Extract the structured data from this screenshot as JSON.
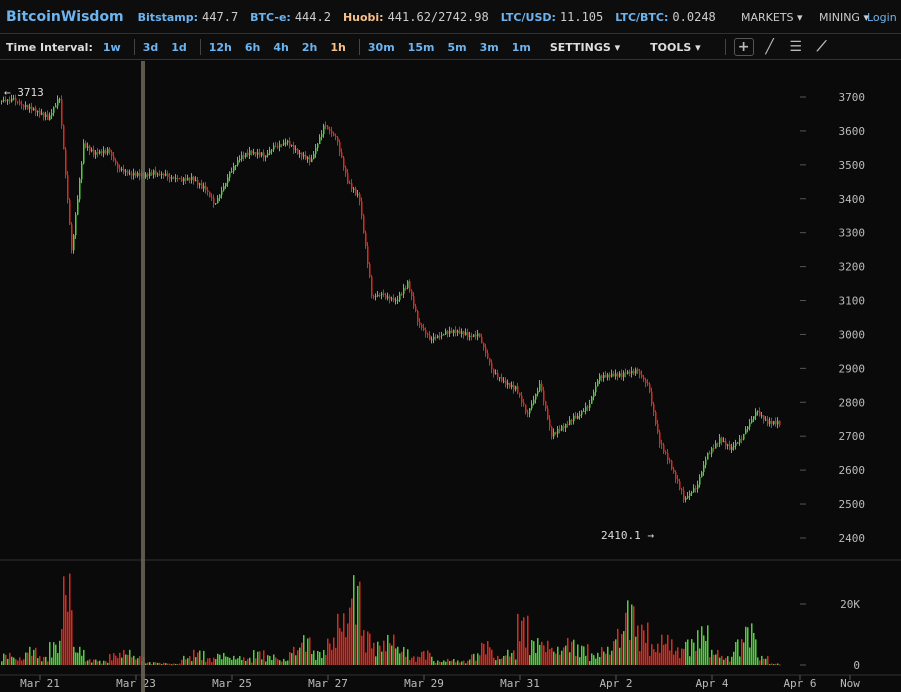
{
  "header": {
    "logo": "BitcoinWisdom",
    "tickers": [
      {
        "label": "Bitstamp:",
        "value": "447.7"
      },
      {
        "label": "BTC-e:",
        "value": "444.2"
      },
      {
        "label": "Huobi:",
        "value": "441.62/2742.98",
        "highlight": true
      },
      {
        "label": "LTC/USD:",
        "value": "11.105"
      },
      {
        "label": "LTC/BTC:",
        "value": "0.0248"
      }
    ],
    "markets": "MARKETS ▾",
    "mining": "MINING ▾",
    "login": "Login"
  },
  "toolbar": {
    "time_interval_label": "Time Interval:",
    "groups": [
      [
        "1w"
      ],
      [
        "3d",
        "1d"
      ],
      [
        "12h",
        "6h",
        "4h",
        "2h",
        "1h"
      ],
      [
        "30m",
        "15m",
        "5m",
        "3m",
        "1m"
      ]
    ],
    "active": "1h",
    "settings": "SETTINGS ▾",
    "tools": "TOOLS ▾",
    "tool_icons": [
      "crosshair-icon",
      "line-draw-icon",
      "fibonacci-icon",
      "fan-icon"
    ]
  },
  "colors": {
    "up": "#4fd13a",
    "down": "#e0281e",
    "accent": "#6cb4f0",
    "active": "#f5c08a"
  },
  "chart_data": {
    "type": "candlestick",
    "interval": "1h",
    "price_axis": {
      "ticks": [
        3700,
        3600,
        3500,
        3400,
        3300,
        3200,
        3100,
        3000,
        2900,
        2800,
        2700,
        2600,
        2500,
        2400
      ]
    },
    "volume_axis": {
      "ticks": [
        "20K",
        "0"
      ],
      "tick_values": [
        20000,
        0
      ]
    },
    "x_ticks": [
      "Mar 21",
      "Mar 23",
      "Mar 25",
      "Mar 27",
      "Mar 29",
      "Mar 31",
      "Apr 2",
      "Apr 4",
      "Apr 6",
      "Now"
    ],
    "high_marker": "← 3713",
    "low_marker": "2410.1 →",
    "closes_6h": [
      3690,
      3670,
      3660,
      3640,
      3700,
      3250,
      3560,
      3530,
      3540,
      3480,
      3470,
      3470,
      3480,
      3470,
      3460,
      3460,
      3430,
      3380,
      3460,
      3520,
      3540,
      3530,
      3560,
      3570,
      3530,
      3510,
      3610,
      3580,
      3450,
      3400,
      3120,
      3120,
      3100,
      3150,
      3020,
      2980,
      3000,
      3010,
      3000,
      3000,
      2900,
      2860,
      2840,
      2760,
      2850,
      2700,
      2730,
      2760,
      2790,
      2880,
      2880,
      2880,
      2890,
      2850,
      2680,
      2610,
      2520,
      2550,
      2650,
      2690,
      2660,
      2700,
      2770,
      2740,
      2740
    ],
    "volumes_6h": [
      4000,
      2500,
      6000,
      3000,
      8000,
      30000,
      6000,
      2000,
      1500,
      4000,
      5000,
      3000,
      1000,
      800,
      500,
      3000,
      5000,
      2500,
      4000,
      3000,
      2500,
      5000,
      3500,
      2000,
      6000,
      10000,
      5000,
      9000,
      17000,
      30000,
      12000,
      8000,
      10000,
      6000,
      3000,
      5000,
      1500,
      2000,
      1500,
      4000,
      8000,
      3000,
      5000,
      17000,
      9000,
      8000,
      6000,
      9000,
      7000,
      4000,
      6000,
      12000,
      22000,
      14000,
      7000,
      10000,
      6000,
      9000,
      13000,
      5000,
      3000,
      9000,
      14000,
      3000,
      500
    ]
  }
}
